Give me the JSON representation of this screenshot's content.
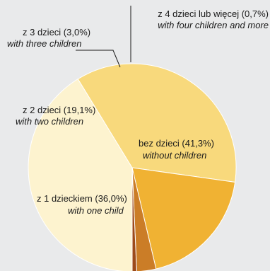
{
  "chart_data": {
    "type": "pie",
    "start_angle_deg": 180,
    "direction": "clockwise",
    "slices": [
      {
        "label_pl": "bez dzieci (41,3%)",
        "label_en": "without children",
        "value": 41.3,
        "color": "#fdf3cf"
      },
      {
        "label_pl": "z 1 dzieckiem (36,0%)",
        "label_en": "with one child",
        "value": 36.0,
        "color": "#f8d97c"
      },
      {
        "label_pl": "z 2 dzieci (19,1%)",
        "label_en": "with two children",
        "value": 19.1,
        "color": "#f0b233"
      },
      {
        "label_pl": "z 3 dzieci (3,0%)",
        "label_en": "with three children",
        "value": 3.0,
        "color": "#cb7d27"
      },
      {
        "label_pl": "z 4 dzieci lub więcej (0,7%)",
        "label_en": "with four children and more",
        "value": 0.7,
        "color": "#9c4a1a"
      }
    ],
    "slice_edge_color": "#ffffff"
  }
}
